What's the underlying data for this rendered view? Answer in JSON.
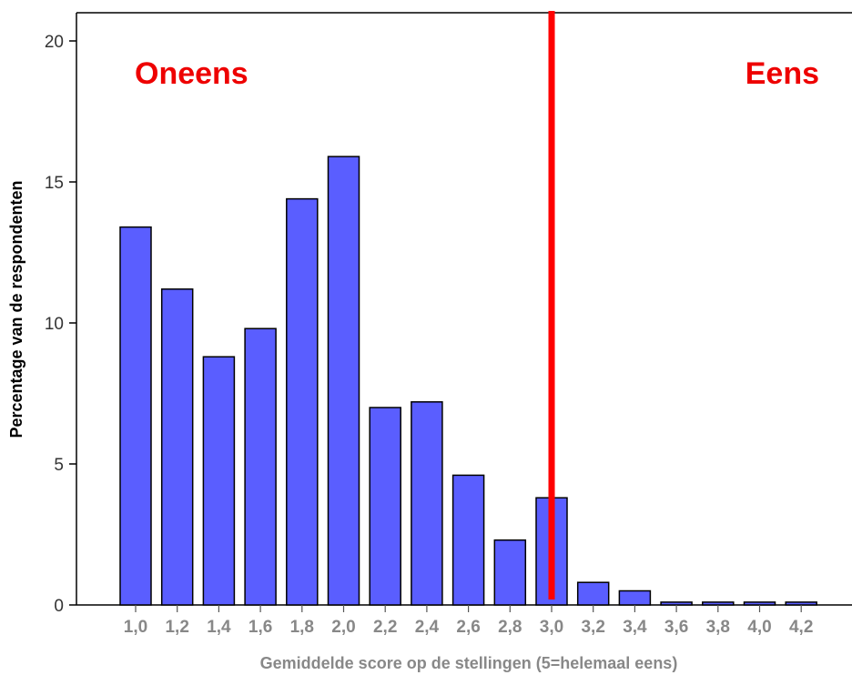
{
  "colors": {
    "bar_fill": "#5a5eff",
    "bar_stroke": "#000000",
    "axis": "#000000",
    "threshold_line": "#ff0000",
    "region_text": "#ee0000",
    "x_label_color": "#888888"
  },
  "chart_data": {
    "type": "bar",
    "xlabel": "Gemiddelde score op de stellingen (5=helemaal eens)",
    "ylabel": "Percentage van de respondenten",
    "ylim": [
      0,
      21
    ],
    "yticks": [
      "0",
      "5",
      "10",
      "15",
      "20"
    ],
    "ytick_values": [
      0,
      5,
      10,
      15,
      20
    ],
    "categories": [
      "1,0",
      "1,2",
      "1,4",
      "1,6",
      "1,8",
      "2,0",
      "2,2",
      "2,4",
      "2,6",
      "2,8",
      "3,0",
      "3,2",
      "3,4",
      "3,6",
      "3,8",
      "4,0",
      "4,2"
    ],
    "values": [
      13.4,
      11.2,
      8.8,
      9.8,
      14.4,
      15.9,
      7.0,
      7.2,
      4.6,
      2.3,
      3.8,
      0.8,
      0.5,
      0.1,
      0.1,
      0.1,
      0.1
    ],
    "threshold_category": "3,0",
    "annotations": [
      {
        "text": "Oneens",
        "side": "left"
      },
      {
        "text": "Eens",
        "side": "right"
      }
    ],
    "grid": false,
    "legend": "none"
  }
}
